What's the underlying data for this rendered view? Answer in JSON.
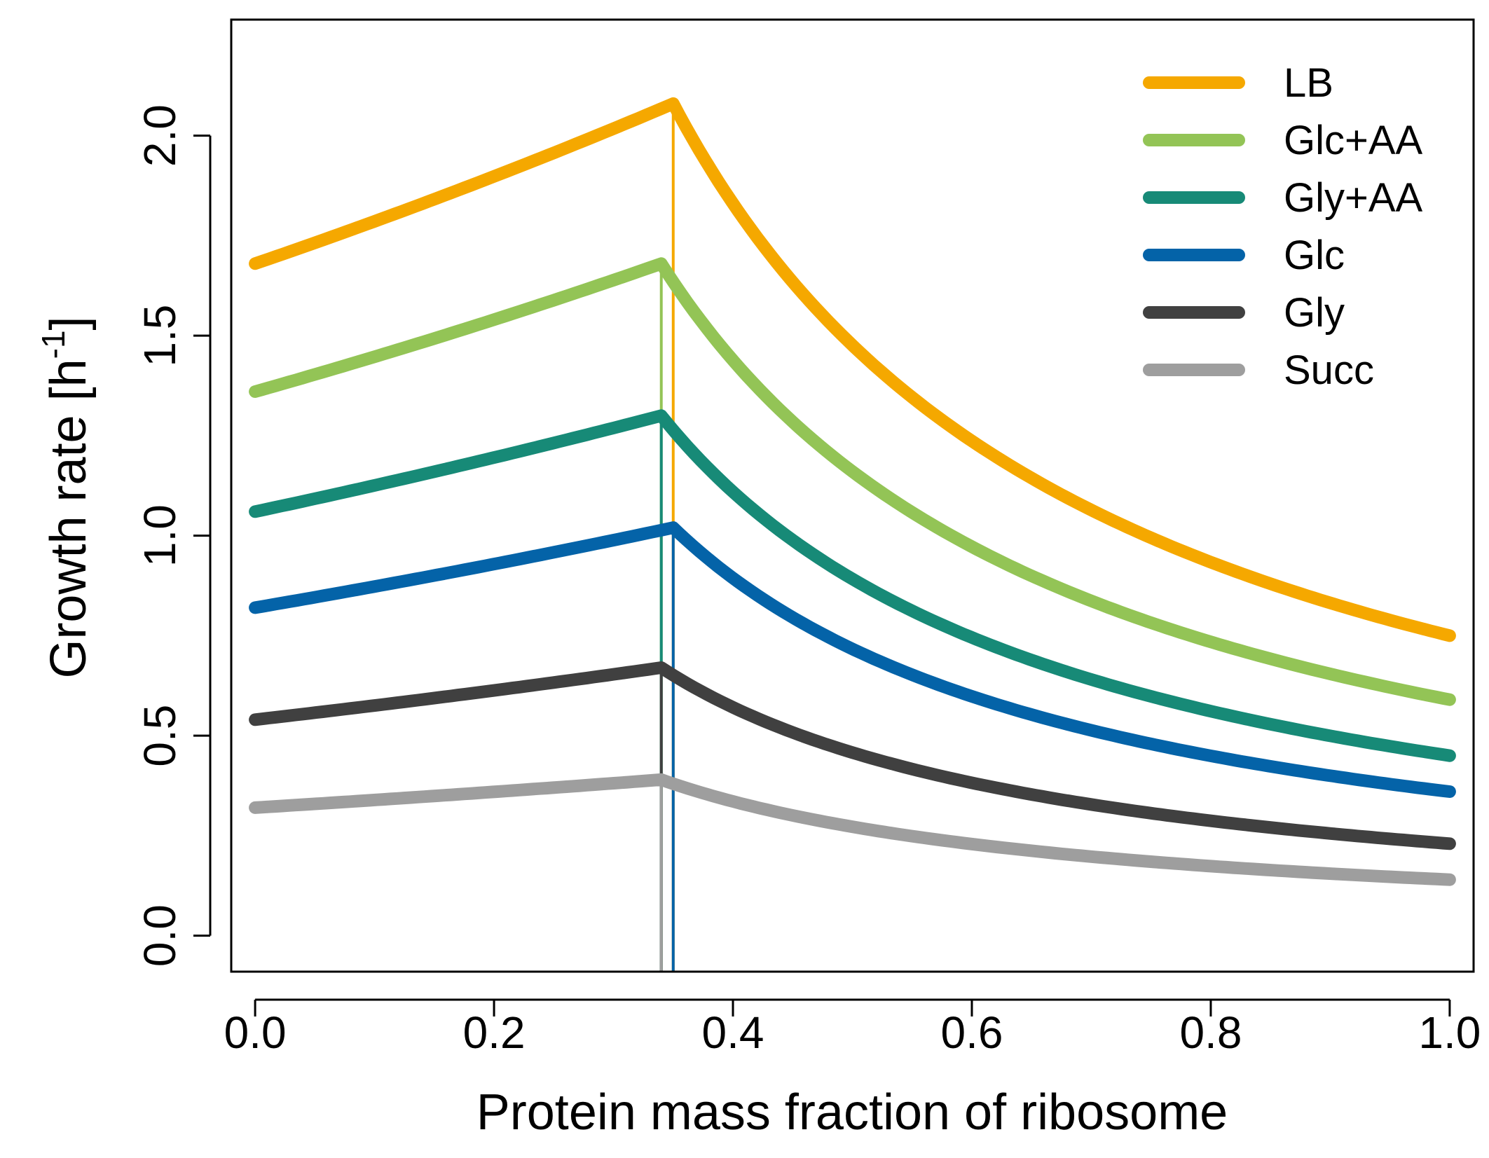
{
  "chart_data": {
    "type": "line",
    "xlabel": "Protein mass fraction of ribosome",
    "ylabel_main": "Growth rate [h",
    "ylabel_sup": "-1",
    "ylabel_close": "]",
    "xlim": [
      -0.02,
      1.02
    ],
    "ylim": [
      -0.09,
      2.29
    ],
    "xticks": [
      0.0,
      0.2,
      0.4,
      0.6,
      0.8,
      1.0
    ],
    "xtick_labels": [
      "0.0",
      "0.2",
      "0.4",
      "0.6",
      "0.8",
      "1.0"
    ],
    "yticks": [
      0.0,
      0.5,
      1.0,
      1.5,
      2.0
    ],
    "ytick_labels": [
      "0.0",
      "0.5",
      "1.0",
      "1.5",
      "2.0"
    ],
    "grid": false,
    "legend_position": "top-right",
    "series": [
      {
        "name": "LB",
        "color": "#F5A800",
        "peak_x": 0.35,
        "y0": 1.68,
        "peak_y": 2.08,
        "y_end": 0.75
      },
      {
        "name": "Glc+AA",
        "color": "#93C456",
        "peak_x": 0.34,
        "y0": 1.36,
        "peak_y": 1.68,
        "y_end": 0.59
      },
      {
        "name": "Gly+AA",
        "color": "#178A77",
        "peak_x": 0.34,
        "y0": 1.06,
        "peak_y": 1.3,
        "y_end": 0.45
      },
      {
        "name": "Glc",
        "color": "#0463A8",
        "peak_x": 0.35,
        "y0": 0.82,
        "peak_y": 1.02,
        "y_end": 0.36
      },
      {
        "name": "Gly",
        "color": "#404040",
        "peak_x": 0.34,
        "y0": 0.54,
        "peak_y": 0.67,
        "y_end": 0.23
      },
      {
        "name": "Succ",
        "color": "#9E9E9E",
        "peak_x": 0.34,
        "y0": 0.32,
        "peak_y": 0.39,
        "y_end": 0.14
      }
    ]
  }
}
